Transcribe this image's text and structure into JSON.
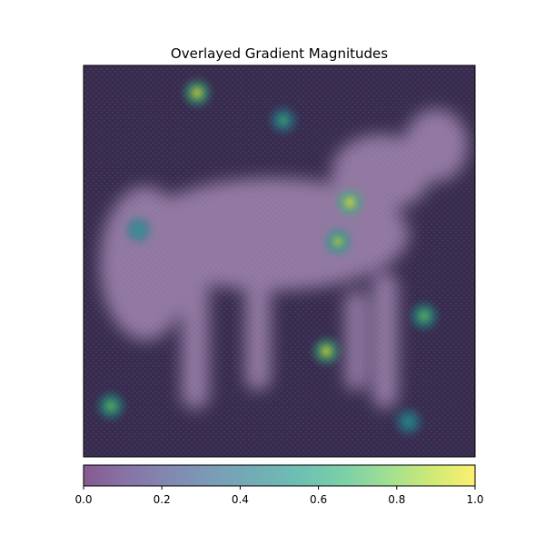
{
  "chart_data": {
    "type": "heatmap",
    "title": "Overlayed Gradient Magnitudes",
    "xlabel": "",
    "ylabel": "",
    "axes_ticks_visible": false,
    "description_of_content": [],
    "colorbar": {
      "colormap": "viridis",
      "orientation": "horizontal",
      "location": "bottom",
      "range": [
        0.0,
        1.0
      ],
      "tick_values": [
        0.0,
        0.2,
        0.4,
        0.6,
        0.8,
        1.0
      ],
      "tick_labels": [
        "0.0",
        "0.2",
        "0.4",
        "0.6",
        "0.8",
        "1.0"
      ]
    },
    "overlay": {
      "base_layer": "grayscale image",
      "gradient_layer_alpha": 0.6,
      "hotspots_normalized_magnitude": [
        {
          "x": 0.29,
          "y": 0.07,
          "value": 0.95
        },
        {
          "x": 0.68,
          "y": 0.35,
          "value": 1.0
        },
        {
          "x": 0.65,
          "y": 0.45,
          "value": 0.85
        },
        {
          "x": 0.62,
          "y": 0.73,
          "value": 0.95
        },
        {
          "x": 0.07,
          "y": 0.87,
          "value": 0.8
        },
        {
          "x": 0.14,
          "y": 0.42,
          "value": 0.6
        },
        {
          "x": 0.87,
          "y": 0.64,
          "value": 0.75
        },
        {
          "x": 0.51,
          "y": 0.14,
          "value": 0.65
        },
        {
          "x": 0.83,
          "y": 0.91,
          "value": 0.6
        }
      ]
    }
  },
  "colors": {
    "viridis": [
      "#440154",
      "#482878",
      "#3e4989",
      "#31688e",
      "#26828e",
      "#1f9e89",
      "#35b779",
      "#6ece58",
      "#b5de2b",
      "#fde725"
    ],
    "heatmap_background": "#3b2a4e",
    "subject_tint": "#b89ac4"
  }
}
